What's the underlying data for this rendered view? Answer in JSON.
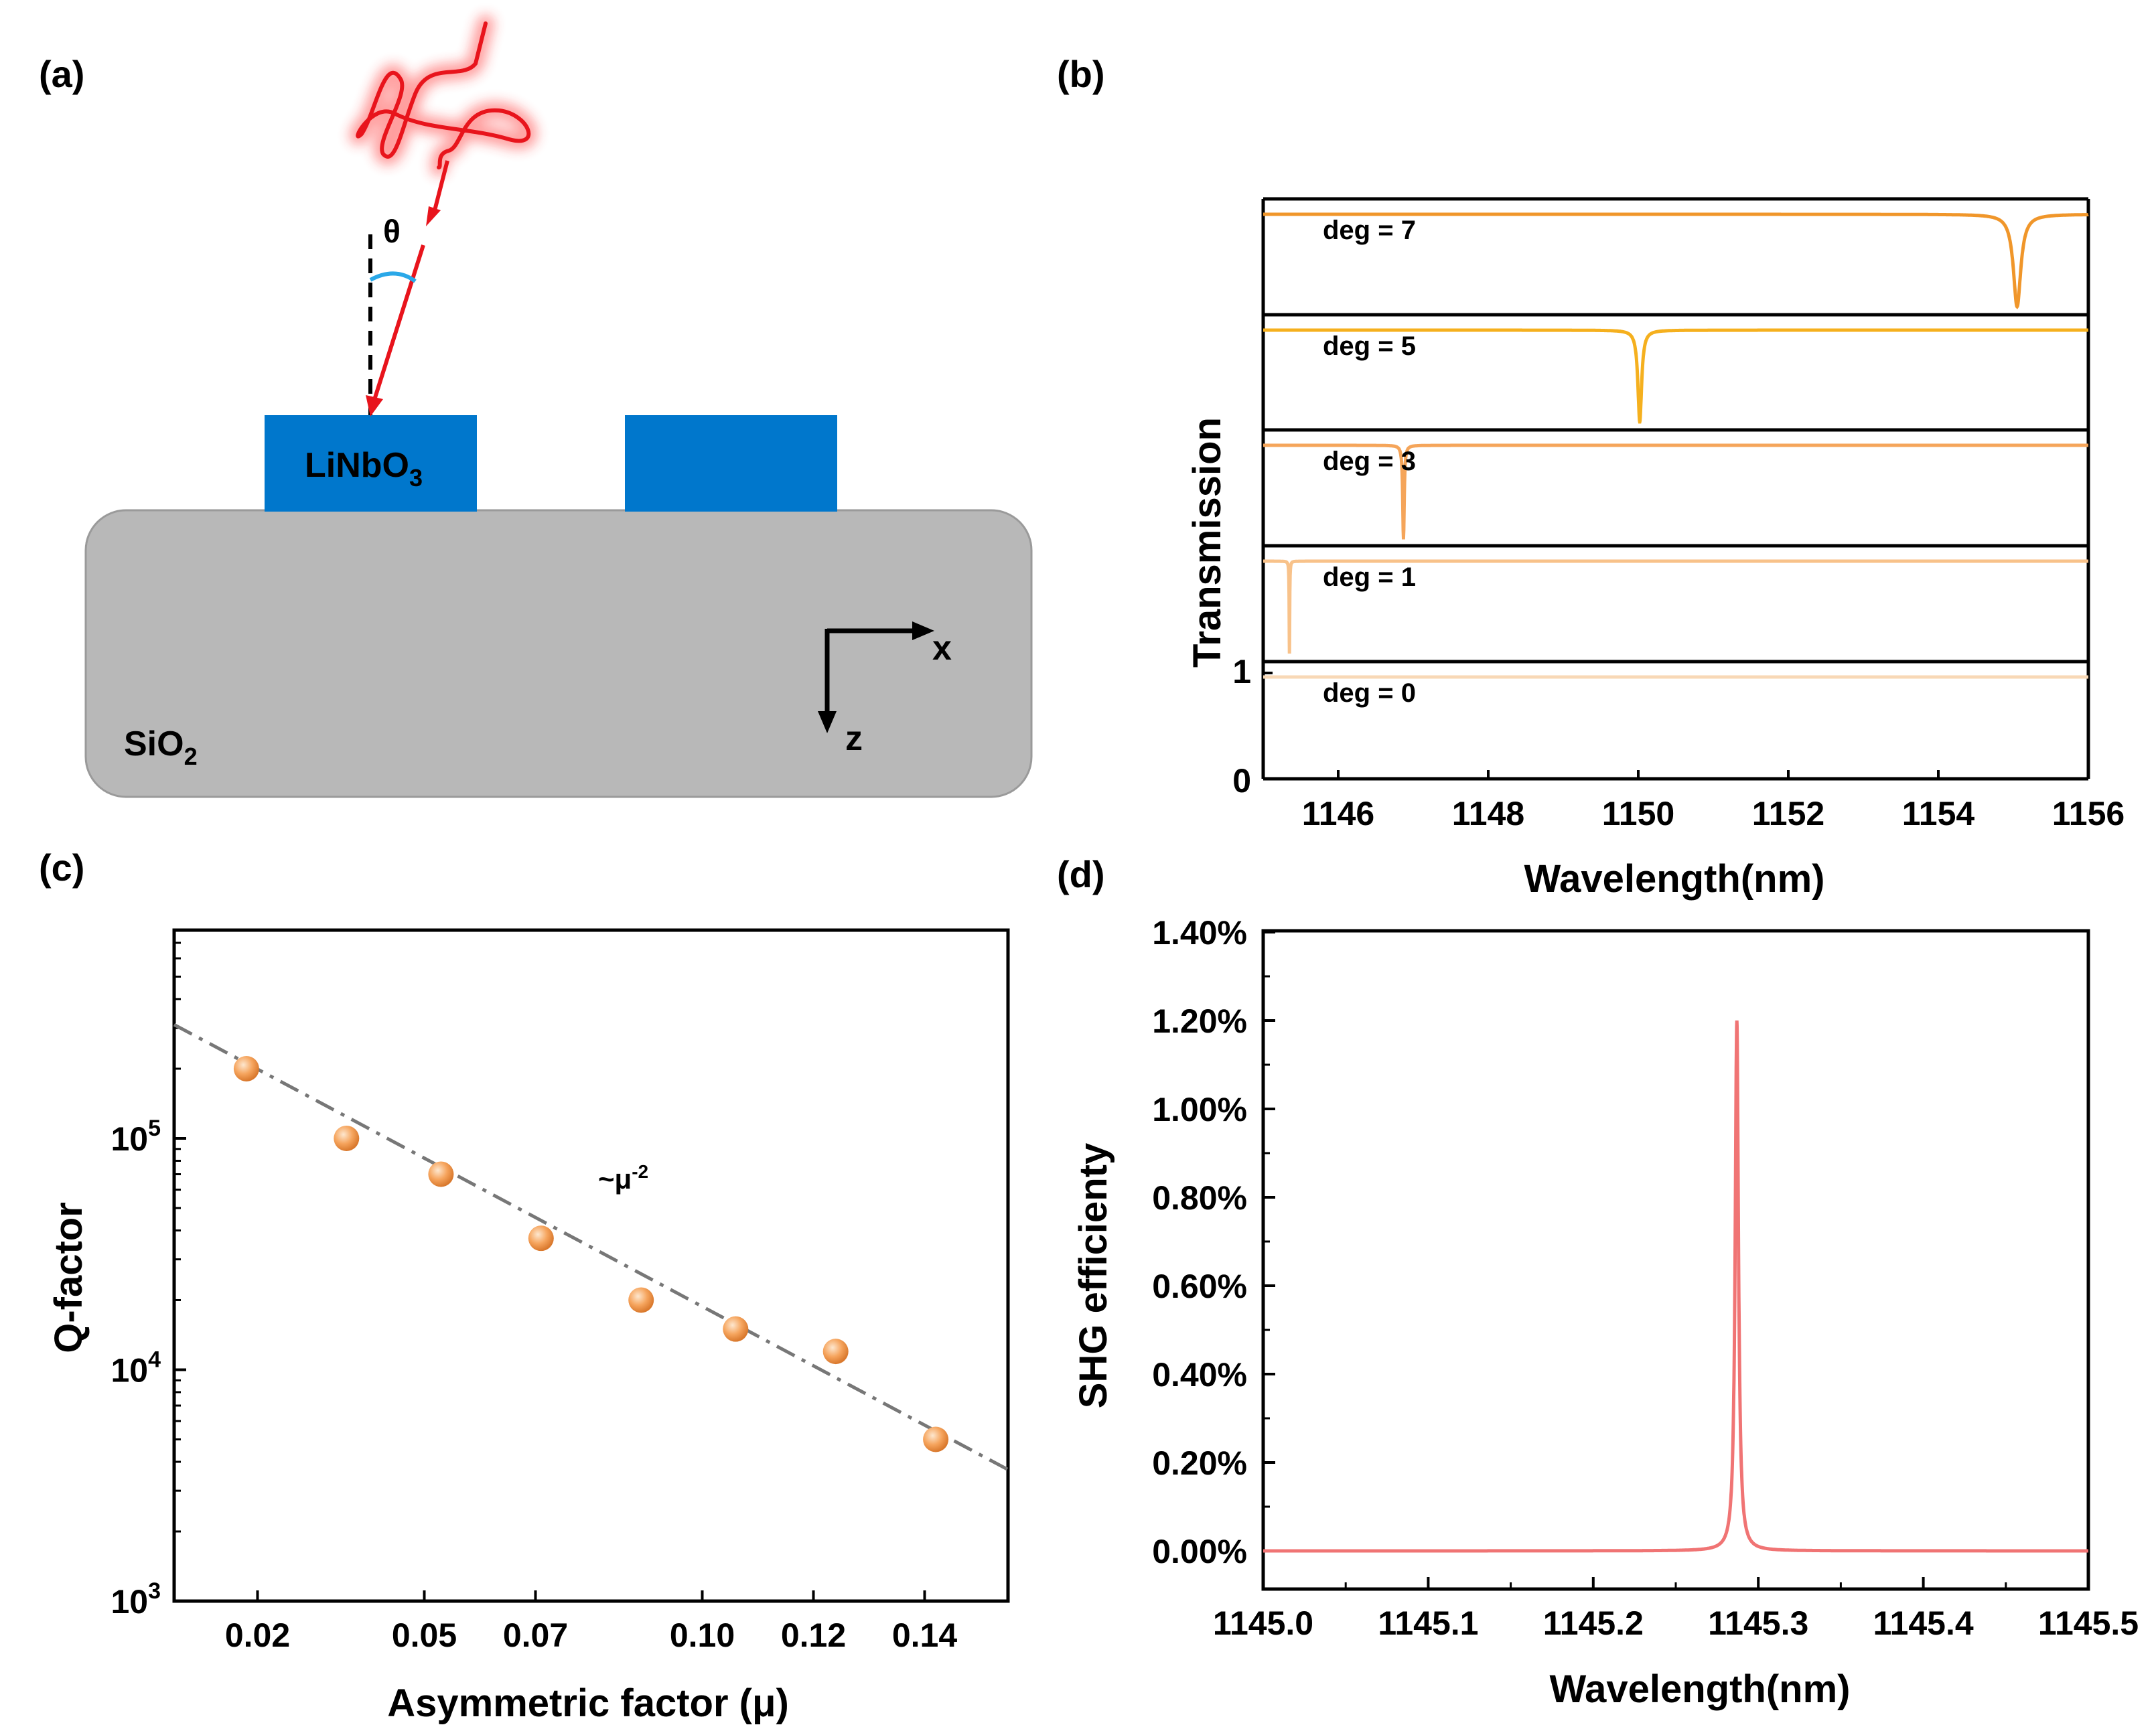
{
  "panel_labels": {
    "a": "(a)",
    "b": "(b)",
    "c": "(c)",
    "d": "(d)"
  },
  "colors": {
    "lithium_niobate": "#0077cc",
    "substrate": "#b8b8b8",
    "beam": "#e8141c",
    "angle_arc": "#2aa8e8",
    "deg7": "#f0962a",
    "deg5": "#f5b01e",
    "deg3": "#f5a55a",
    "deg1": "#f8c28a",
    "deg0": "#f8d8b6",
    "markers": "#f6a55e",
    "fit_line": "#777777",
    "shg_curve": "#f07474"
  },
  "diagram": {
    "theta_label": "θ",
    "material_top": {
      "base": "LiNbO",
      "sub": "3"
    },
    "material_bottom": {
      "base": "SiO",
      "sub": "2"
    },
    "axis_x": "x",
    "axis_z": "z"
  },
  "chart_data": [
    {
      "panel": "b",
      "type": "line",
      "xlabel": "Wavelength(nm)",
      "ylabel": "Transmission",
      "xlim": [
        1145,
        1156
      ],
      "xticks": [
        "1146",
        "1148",
        "1150",
        "1152",
        "1154",
        "1156"
      ],
      "xtick_values": [
        1146,
        1148,
        1150,
        1152,
        1154,
        1156
      ],
      "yticks": [
        "0",
        "1"
      ],
      "series": [
        {
          "name": "deg = 7",
          "resonance": 1155.05,
          "width": 0.06
        },
        {
          "name": "deg = 5",
          "resonance": 1150.02,
          "width": 0.03
        },
        {
          "name": "deg = 3",
          "resonance": 1146.87,
          "width": 0.012
        },
        {
          "name": "deg = 1",
          "resonance": 1145.35,
          "width": 0.004
        },
        {
          "name": "deg = 0",
          "resonance": null,
          "width": 0
        }
      ]
    },
    {
      "panel": "c",
      "type": "scatter",
      "xlabel": "Asymmetric factor (μ)",
      "ylabel": "Q-factor",
      "yscale": "log",
      "xlim": [
        0.005,
        0.155
      ],
      "ylim_log10": [
        3,
        5.9
      ],
      "xticks": [
        "0.02",
        "0.05",
        "0.07",
        "0.10",
        "0.12",
        "0.14"
      ],
      "xtick_values": [
        0.02,
        0.05,
        0.07,
        0.1,
        0.12,
        0.14
      ],
      "ytick_base": "10",
      "ytick_exps": [
        "3",
        "4",
        "5"
      ],
      "points": {
        "x": [
          0.018,
          0.036,
          0.053,
          0.071,
          0.089,
          0.106,
          0.124,
          0.142
        ],
        "y": [
          200000,
          100000,
          70000,
          37000,
          20000,
          15000,
          12000,
          5000
        ]
      },
      "fit_line": {
        "x": [
          0.005,
          0.155
        ],
        "y": [
          310000,
          3700
        ]
      },
      "annotation": {
        "base": "~μ",
        "sup": "-2"
      }
    },
    {
      "panel": "d",
      "type": "line",
      "xlabel": "Wavelength(nm)",
      "ylabel": "SHG efficienty",
      "xlim": [
        1145.0,
        1145.5
      ],
      "ylim": [
        -0.01,
        1.4
      ],
      "xticks": [
        "1145.0",
        "1145.1",
        "1145.2",
        "1145.3",
        "1145.4",
        "1145.5"
      ],
      "xtick_values": [
        1145.0,
        1145.1,
        1145.2,
        1145.3,
        1145.4,
        1145.5
      ],
      "yticks": [
        "0.00%",
        "0.20%",
        "0.40%",
        "0.60%",
        "0.80%",
        "1.00%",
        "1.20%",
        "1.40%"
      ],
      "ytick_values": [
        0,
        0.2,
        0.4,
        0.6,
        0.8,
        1.0,
        1.2,
        1.4
      ],
      "peak": {
        "x": 1145.287,
        "y": 1.2,
        "width": 0.0012
      }
    }
  ]
}
